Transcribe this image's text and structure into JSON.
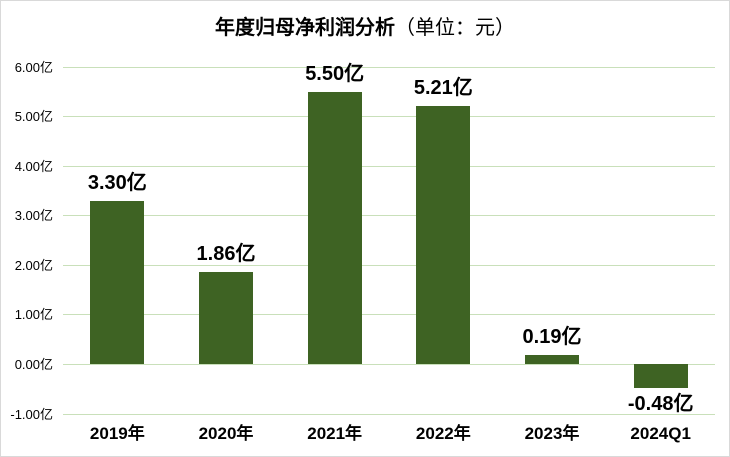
{
  "title": {
    "main": "年度归母净利润分析",
    "unit_suffix": "（单位：元）"
  },
  "colors": {
    "bar": "#3e6323",
    "gridline": "#c9e0ba",
    "frame_border": "#d9d9d9",
    "text": "#000000"
  },
  "chart_data": {
    "type": "bar",
    "title": "年度归母净利润分析（单位：元）",
    "categories": [
      "2019年",
      "2020年",
      "2021年",
      "2022年",
      "2023年",
      "2024Q1"
    ],
    "values": [
      3.3,
      1.86,
      5.5,
      5.21,
      0.19,
      -0.48
    ],
    "value_labels": [
      "3.30亿",
      "1.86亿",
      "5.50亿",
      "5.21亿",
      "0.19亿",
      "-0.48亿"
    ],
    "xlabel": "",
    "ylabel": "",
    "ylim": [
      -1.0,
      6.0
    ],
    "y_tick_values": [
      6,
      5,
      4,
      3,
      2,
      1,
      0,
      -1
    ],
    "y_tick_labels": [
      "6.00亿",
      "5.00亿",
      "4.00亿",
      "3.00亿",
      "2.00亿",
      "1.00亿",
      "0.00亿",
      "-1.00亿"
    ],
    "grid": true,
    "legend": false
  }
}
